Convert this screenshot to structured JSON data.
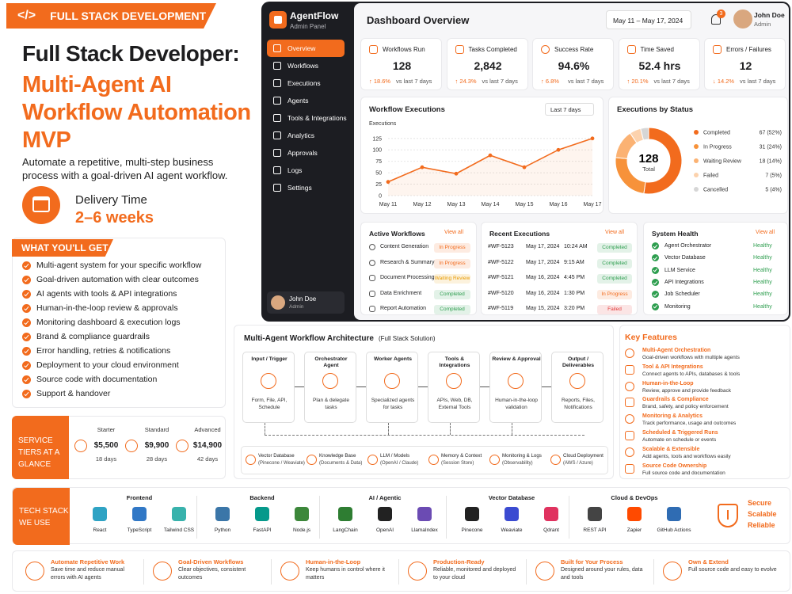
{
  "banner": {
    "icon": "</>",
    "tag": "FULL STACK DEVELOPMENT"
  },
  "hero": {
    "title": "Full Stack Developer:",
    "subtitle": "Multi-Agent AI Workflow Automation MVP",
    "description": "Automate a repetitive, multi-step business process with a goal-driven AI agent workflow.",
    "delivery_label": "Delivery Time",
    "delivery_value": "2–6 weeks"
  },
  "get": {
    "title": "WHAT YOU'LL GET",
    "items": [
      "Multi-agent system for your specific workflow",
      "Goal-driven automation with clear outcomes",
      "AI agents with tools & API integrations",
      "Human-in-the-loop review & approvals",
      "Monitoring dashboard & execution logs",
      "Brand & compliance guardrails",
      "Error handling, retries & notifications",
      "Deployment to your cloud environment",
      "Source code with documentation",
      "Support & handover"
    ]
  },
  "tiers": {
    "title": "SERVICE TIERS AT A GLANCE",
    "items": [
      {
        "name": "Starter",
        "price": "$5,500",
        "duration": "18 days"
      },
      {
        "name": "Standard",
        "price": "$9,900",
        "duration": "28 days"
      },
      {
        "name": "Advanced",
        "price": "$14,900",
        "duration": "42 days"
      }
    ]
  },
  "dashboard": {
    "app": "AgentFlow",
    "app_sub": "Admin Panel",
    "nav": [
      "Overview",
      "Workflows",
      "Executions",
      "Agents",
      "Tools & Integrations",
      "Analytics",
      "Approvals",
      "Logs",
      "Settings"
    ],
    "user": {
      "name": "John Doe",
      "role": "Admin"
    },
    "heading": "Dashboard Overview",
    "date_range": "May 11 – May 17, 2024",
    "notifications": "3",
    "kpis": [
      {
        "title": "Workflows Run",
        "value": "128",
        "change": "↑ 18.6%",
        "compare": "vs last 7 days"
      },
      {
        "title": "Tasks Completed",
        "value": "2,842",
        "change": "↑ 24.3%",
        "compare": "vs last 7 days"
      },
      {
        "title": "Success Rate",
        "value": "94.6%",
        "change": "↑ 6.8%",
        "compare": "vs last 7 days"
      },
      {
        "title": "Time Saved",
        "value": "52.4 hrs",
        "change": "↑ 20.1%",
        "compare": "vs last 7 days"
      },
      {
        "title": "Errors / Failures",
        "value": "12",
        "change": "↓ 14.2%",
        "compare": "vs last 7 days"
      }
    ],
    "executions_chart": {
      "type": "line",
      "title": "Workflow Executions",
      "period": "Last 7 days",
      "y_label": "Executions",
      "categories": [
        "May 11",
        "May 12",
        "May 13",
        "May 14",
        "May 15",
        "May 16",
        "May 17"
      ],
      "values": [
        30,
        62,
        48,
        88,
        62,
        100,
        125
      ],
      "color": "#f26b1d",
      "ylim": [
        0,
        135
      ],
      "yticks": [
        0,
        25,
        50,
        75,
        100,
        125
      ],
      "grid": true
    },
    "status_chart": {
      "type": "donut",
      "title": "Executions by Status",
      "total": "128",
      "total_label": "Total",
      "categories": [
        "Completed",
        "In Progress",
        "Waiting Review",
        "Failed",
        "Cancelled"
      ],
      "values": [
        67,
        31,
        18,
        7,
        5
      ],
      "value_labels": [
        "67 (52%)",
        "31 (24%)",
        "18 (14%)",
        "7 (5%)",
        "5 (4%)"
      ],
      "colors": [
        "#f26b1d",
        "#f7923a",
        "#fbb273",
        "#fcd2ad",
        "#d6d6d6"
      ]
    },
    "active_workflows": {
      "title": "Active Workflows",
      "link": "View all",
      "rows": [
        {
          "name": "Content Generation",
          "status": "In Progress",
          "color": "#f26b1d"
        },
        {
          "name": "Research & Summary",
          "status": "In Progress",
          "color": "#f26b1d"
        },
        {
          "name": "Document Processing",
          "status": "Waiting Review",
          "color": "#e89a00"
        },
        {
          "name": "Data Enrichment",
          "status": "Completed",
          "color": "#2e9e4f"
        },
        {
          "name": "Report Automation",
          "status": "Completed",
          "color": "#2e9e4f"
        }
      ]
    },
    "recent": {
      "title": "Recent Executions",
      "link": "View all",
      "rows": [
        {
          "id": "#WF-5123",
          "date": "May 17, 2024",
          "time": "10:24 AM",
          "status": "Completed",
          "color": "#2e9e4f"
        },
        {
          "id": "#WF-5122",
          "date": "May 17, 2024",
          "time": "9:15 AM",
          "status": "Completed",
          "color": "#2e9e4f"
        },
        {
          "id": "#WF-5121",
          "date": "May 16, 2024",
          "time": "4:45 PM",
          "status": "Completed",
          "color": "#2e9e4f"
        },
        {
          "id": "#WF-5120",
          "date": "May 16, 2024",
          "time": "1:30 PM",
          "status": "In Progress",
          "color": "#f26b1d"
        },
        {
          "id": "#WF-5119",
          "date": "May 15, 2024",
          "time": "3:20 PM",
          "status": "Failed",
          "color": "#e23b3b"
        }
      ]
    },
    "health": {
      "title": "System Health",
      "link": "View all",
      "rows": [
        {
          "name": "Agent Orchestrator",
          "status": "Healthy"
        },
        {
          "name": "Vector Database",
          "status": "Healthy"
        },
        {
          "name": "LLM Service",
          "status": "Healthy"
        },
        {
          "name": "API Integrations",
          "status": "Healthy"
        },
        {
          "name": "Job Scheduler",
          "status": "Healthy"
        },
        {
          "name": "Monitoring",
          "status": "Healthy"
        }
      ]
    }
  },
  "architecture": {
    "title": "Multi-Agent Workflow Architecture",
    "subtitle": "(Full Stack Solution)",
    "stages": [
      {
        "title": "Input / Trigger",
        "desc": "Form, File, API, Schedule"
      },
      {
        "title": "Orchestrator Agent",
        "desc": "Plan & delegate tasks"
      },
      {
        "title": "Worker Agents",
        "desc": "Specialized agents for tasks"
      },
      {
        "title": "Tools & Integrations",
        "desc": "APIs, Web, DB, External Tools"
      },
      {
        "title": "Review & Approval",
        "desc": "Human-in-the-loop validation"
      },
      {
        "title": "Output / Deliverables",
        "desc": "Reports, Files, Notifications"
      }
    ],
    "services": [
      {
        "title": "Vector Database",
        "desc": "(Pinecone / Weaviate)"
      },
      {
        "title": "Knowledge Base",
        "desc": "(Documents & Data)"
      },
      {
        "title": "LLM / Models",
        "desc": "(OpenAI / Claude)"
      },
      {
        "title": "Memory & Context",
        "desc": "(Session Store)"
      },
      {
        "title": "Monitoring & Logs",
        "desc": "(Observability)"
      },
      {
        "title": "Cloud Deployment",
        "desc": "(AWS / Azure)"
      }
    ]
  },
  "features": {
    "title": "Key Features",
    "items": [
      {
        "title": "Multi-Agent Orchestration",
        "desc": "Goal-driven workflows with multiple agents"
      },
      {
        "title": "Tool & API Integrations",
        "desc": "Connect agents to APIs, databases & tools"
      },
      {
        "title": "Human-in-the-Loop",
        "desc": "Review, approve and provide feedback"
      },
      {
        "title": "Guardrails & Compliance",
        "desc": "Brand, safety, and policy enforcement"
      },
      {
        "title": "Monitoring & Analytics",
        "desc": "Track performance, usage and outcomes"
      },
      {
        "title": "Scheduled & Triggered Runs",
        "desc": "Automate on schedule or events"
      },
      {
        "title": "Scalable & Extensible",
        "desc": "Add agents, tools and workflows easily"
      },
      {
        "title": "Source Code Ownership",
        "desc": "Full source code and documentation"
      }
    ]
  },
  "tech": {
    "title": "TECH STACK WE USE",
    "groups": [
      {
        "name": "Frontend",
        "items": [
          "React",
          "TypeScript",
          "Tailwind CSS"
        ]
      },
      {
        "name": "Backend",
        "items": [
          "Python",
          "FastAPI",
          "Node.js"
        ]
      },
      {
        "name": "AI / Agentic",
        "items": [
          "LangChain",
          "OpenAI",
          "LlamaIndex"
        ]
      },
      {
        "name": "Vector Database",
        "items": [
          "Pinecone",
          "Weaviate",
          "Qdrant"
        ]
      },
      {
        "name": "Cloud & DevOps",
        "items": [
          "REST API",
          "Zapier",
          "GitHub Actions"
        ]
      }
    ],
    "qualities": [
      "Secure",
      "Scalable",
      "Reliable"
    ]
  },
  "benefits": [
    {
      "title": "Automate Repetitive Work",
      "desc": "Save time and reduce manual errors with AI agents"
    },
    {
      "title": "Goal-Driven Workflows",
      "desc": "Clear objectives, consistent outcomes"
    },
    {
      "title": "Human-in-the-Loop",
      "desc": "Keep humans in control where it matters"
    },
    {
      "title": "Production-Ready",
      "desc": "Reliable, monitored and deployed to your cloud"
    },
    {
      "title": "Built for Your Process",
      "desc": "Designed around your rules, data and tools"
    },
    {
      "title": "Own & Extend",
      "desc": "Full source code and easy to evolve"
    }
  ]
}
